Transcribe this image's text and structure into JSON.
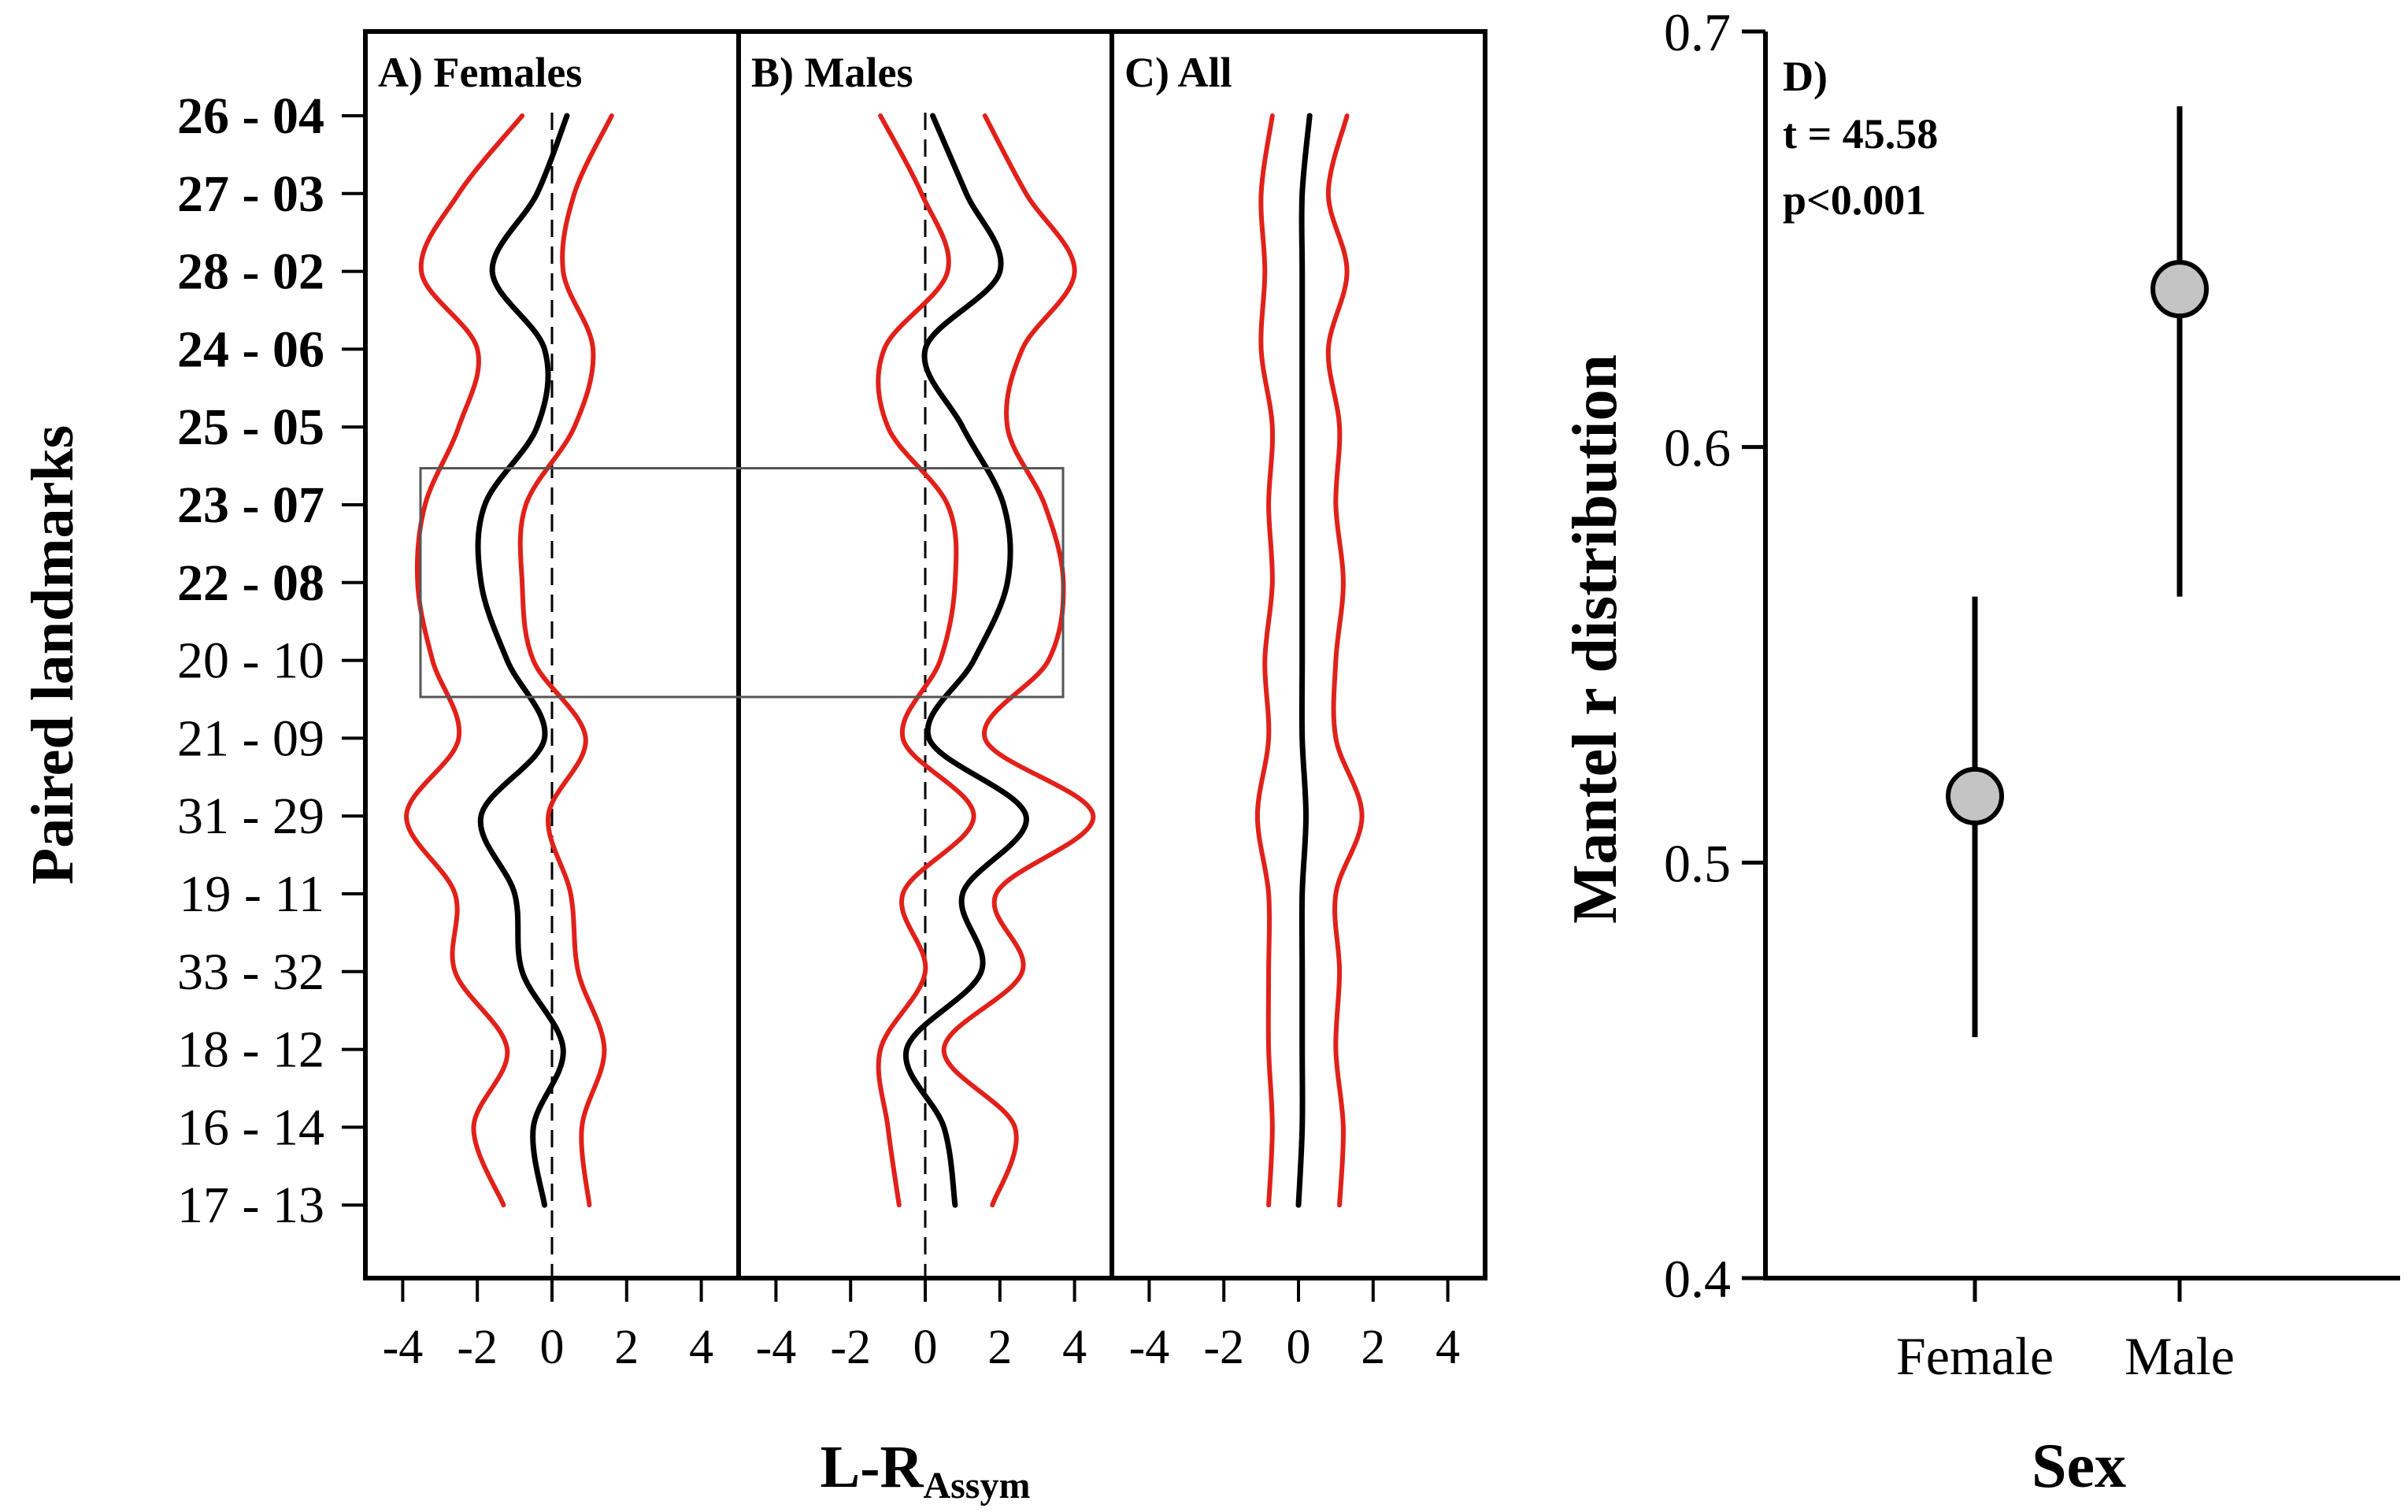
{
  "chart_data": [
    {
      "type": "line",
      "layout": "three-panel profile plot",
      "ylabel": "Paired landmarks",
      "xlabel_main": "L-R",
      "xlabel_sub": "Assym",
      "xticks": [
        -4,
        -2,
        0,
        2,
        4
      ],
      "xlim": [
        -5,
        5
      ],
      "landmarks": [
        "26 - 04",
        "27 - 03",
        "28 - 02",
        "24 - 06",
        "25 - 05",
        "23 - 07",
        "22 - 08",
        "20 - 10",
        "21 - 09",
        "31 - 29",
        "19 - 11",
        "33 - 32",
        "18 - 12",
        "16 - 14",
        "17 - 13"
      ],
      "bold_landmarks": [
        "26 - 04",
        "27 - 03",
        "28 - 02",
        "24 - 06",
        "25 - 05",
        "23 - 07",
        "22 - 08"
      ],
      "highlight_box": {
        "from_landmark": "23 - 07",
        "to_landmark": "20 - 10"
      },
      "colors": {
        "mean": "#000000",
        "interval": "#e0211a",
        "box": "#555555"
      },
      "panels": [
        {
          "title": "A) Females",
          "zero_line": true,
          "series": [
            {
              "name": "mean",
              "values": [
                0.4,
                -0.4,
                -1.6,
                -0.2,
                -0.4,
                -1.8,
                -1.9,
                -1.2,
                -0.2,
                -1.9,
                -1.0,
                -0.8,
                0.3,
                -0.5,
                -0.2
              ]
            },
            {
              "name": "lower",
              "values": [
                -0.8,
                -2.5,
                -3.5,
                -2.0,
                -2.5,
                -3.4,
                -3.6,
                -3.2,
                -2.5,
                -3.9,
                -2.6,
                -2.6,
                -1.2,
                -2.1,
                -1.3
              ]
            },
            {
              "name": "upper",
              "values": [
                1.6,
                0.6,
                0.3,
                1.1,
                0.6,
                -0.7,
                -0.8,
                -0.5,
                0.9,
                -0.1,
                0.5,
                0.7,
                1.4,
                0.8,
                1.0
              ]
            }
          ]
        },
        {
          "title": "B) Males",
          "zero_line": true,
          "series": [
            {
              "name": "mean",
              "values": [
                0.2,
                1.1,
                2.0,
                0.0,
                1.0,
                2.1,
                2.2,
                1.3,
                0.1,
                2.7,
                1.0,
                1.5,
                -0.5,
                0.5,
                0.8
              ]
            },
            {
              "name": "lower",
              "values": [
                -1.2,
                -0.1,
                0.6,
                -1.1,
                -1.0,
                0.6,
                0.8,
                0.4,
                -0.6,
                1.3,
                -0.6,
                0.0,
                -1.2,
                -1.0,
                -0.7
              ]
            },
            {
              "name": "upper",
              "values": [
                1.6,
                2.7,
                4.0,
                2.6,
                2.2,
                3.2,
                3.7,
                3.3,
                1.6,
                4.5,
                1.9,
                2.6,
                0.5,
                2.4,
                1.8
              ]
            }
          ]
        },
        {
          "title": "C) All",
          "zero_line": false,
          "series": [
            {
              "name": "mean",
              "values": [
                0.3,
                0.1,
                0.1,
                0.1,
                0.1,
                0.1,
                0.1,
                0.1,
                0.1,
                0.2,
                0.1,
                0.1,
                0.1,
                0.1,
                0.0
              ]
            },
            {
              "name": "lower",
              "values": [
                -0.7,
                -1.0,
                -0.9,
                -1.0,
                -0.7,
                -0.8,
                -0.7,
                -0.9,
                -0.8,
                -1.1,
                -0.8,
                -0.8,
                -0.8,
                -0.7,
                -0.8
              ]
            },
            {
              "name": "upper",
              "values": [
                1.3,
                0.8,
                1.3,
                0.8,
                1.1,
                1.0,
                1.2,
                1.0,
                1.0,
                1.7,
                1.0,
                1.1,
                1.0,
                1.2,
                1.1
              ]
            }
          ]
        }
      ]
    },
    {
      "type": "scatter",
      "title": "D)",
      "stats_lines": [
        "t = 45.58",
        "p<0.001"
      ],
      "xlabel": "Sex",
      "ylabel": "Mantel r distribution",
      "categories": [
        "Female",
        "Male"
      ],
      "values": [
        0.516,
        0.638
      ],
      "ci_low": [
        0.458,
        0.564
      ],
      "ci_high": [
        0.564,
        0.682
      ],
      "ylim": [
        0.4,
        0.7
      ],
      "yticks": [
        0.4,
        0.5,
        0.6,
        0.7
      ],
      "ytick_labels": [
        "0.4",
        "0.5",
        "0.6",
        "0.7"
      ],
      "colors": {
        "marker": "#c4c4c4",
        "line": "#000000"
      }
    }
  ]
}
